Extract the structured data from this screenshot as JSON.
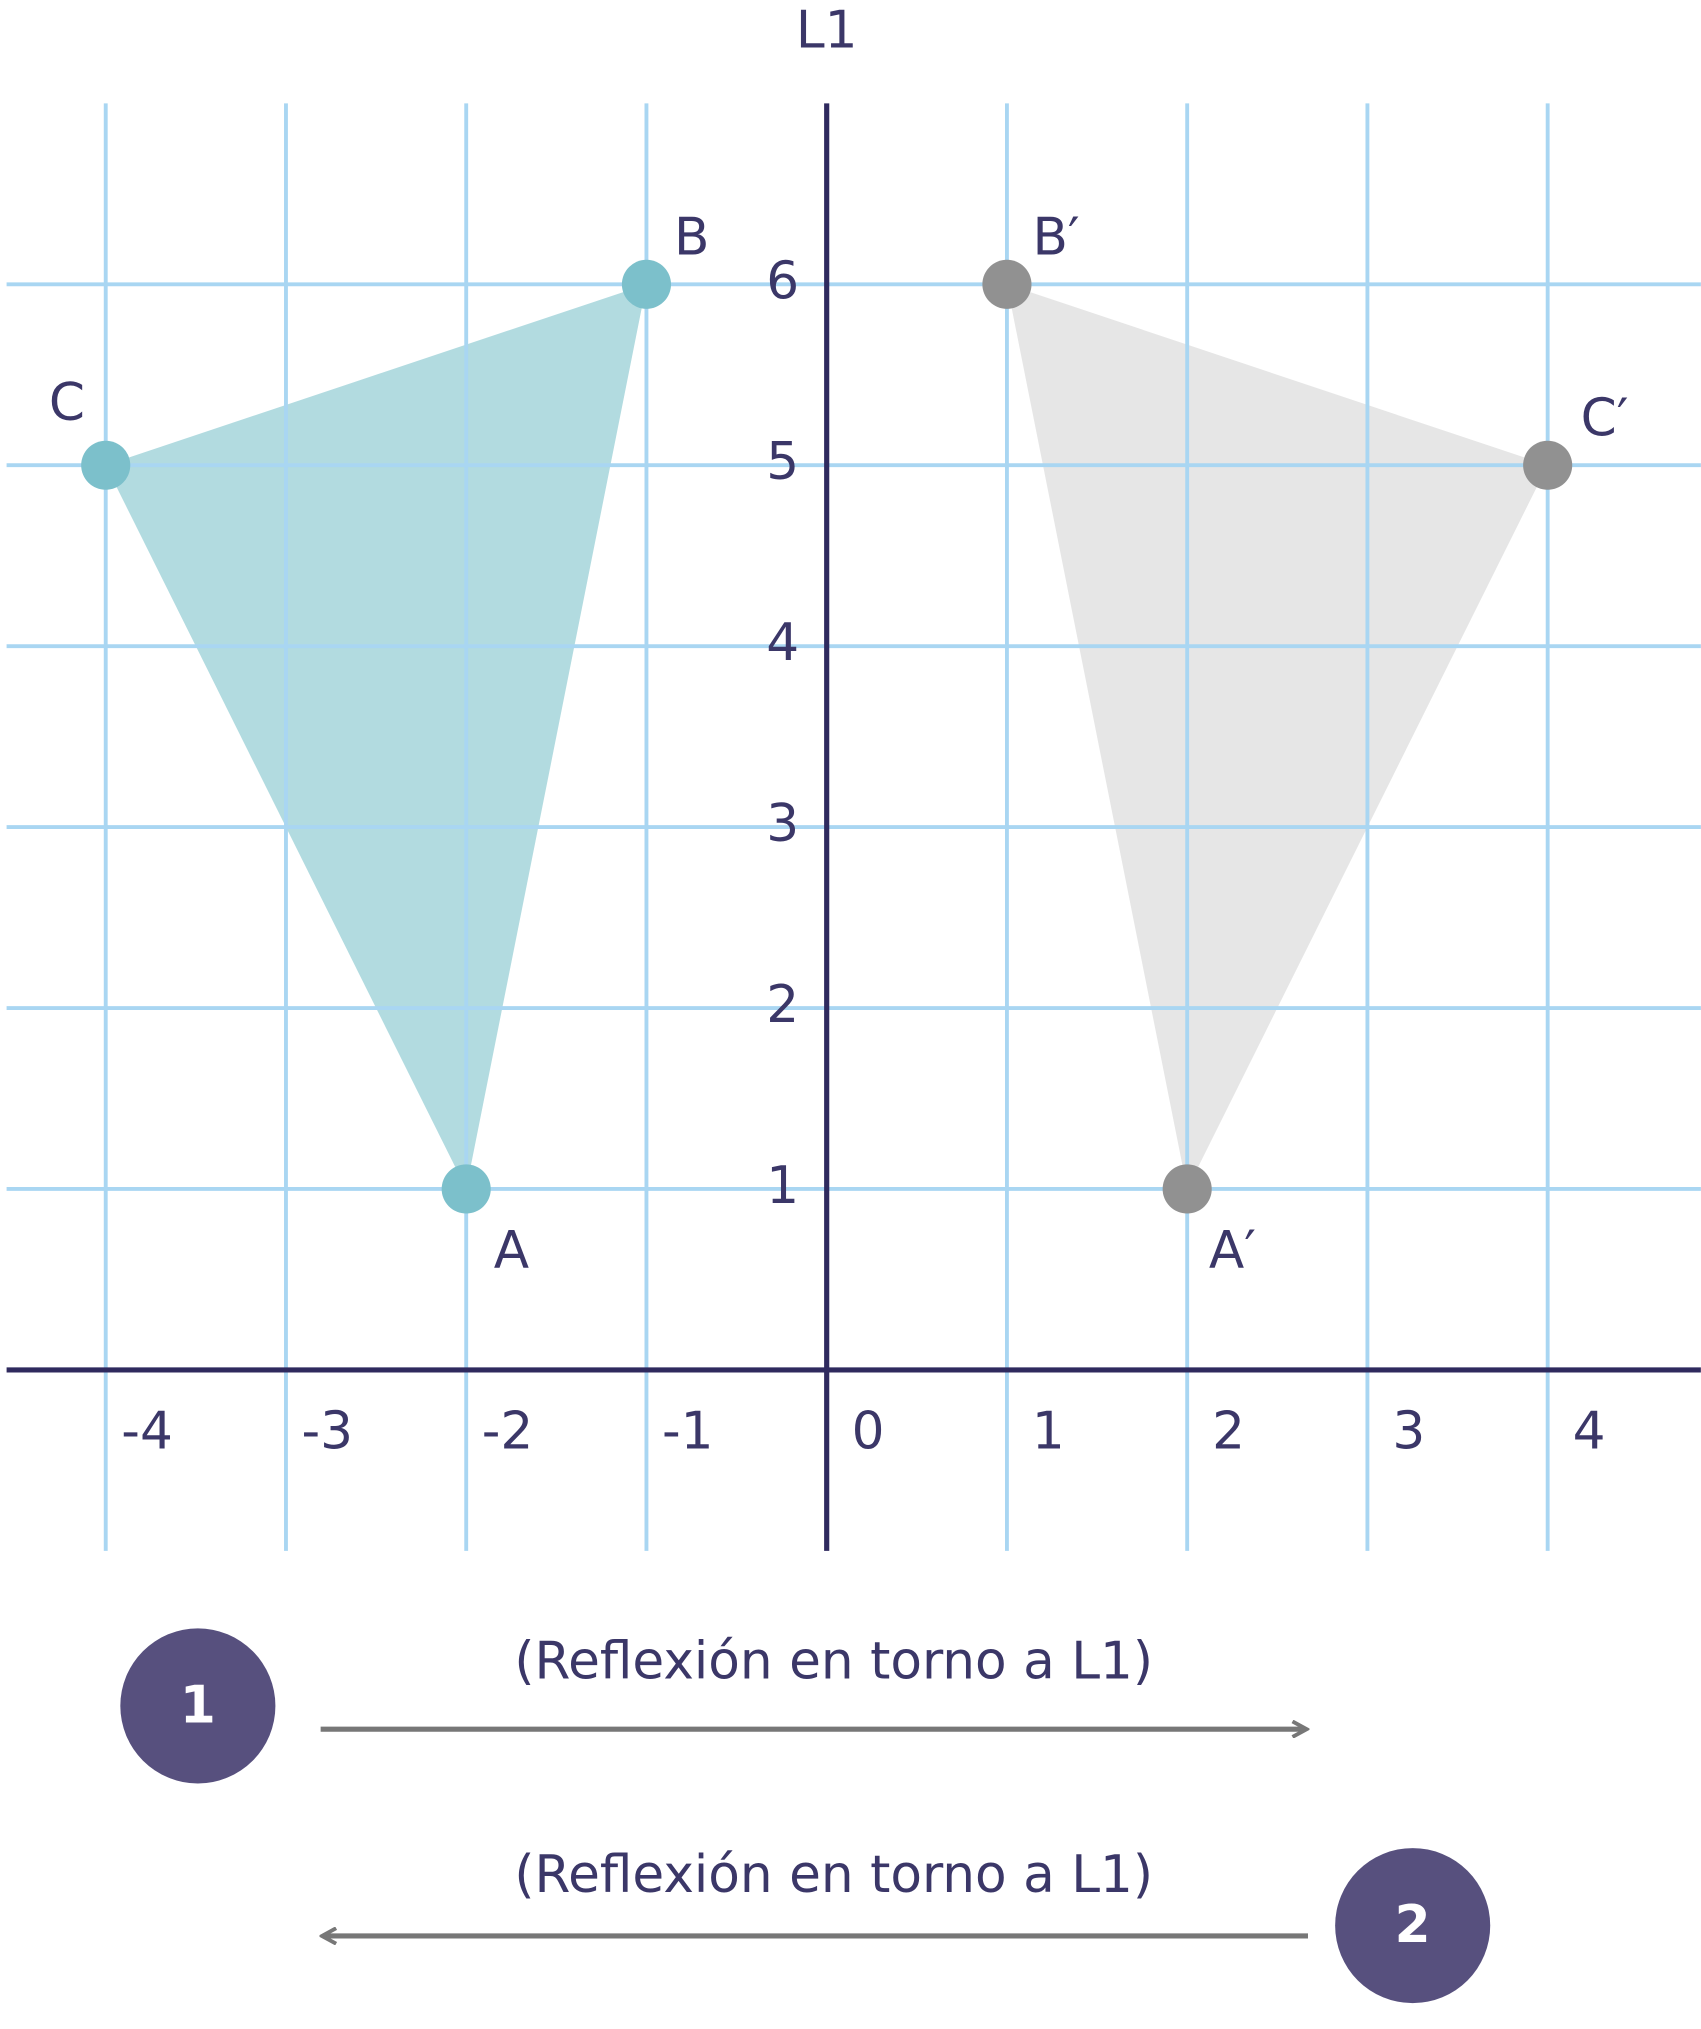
{
  "chart_data": {
    "type": "reflection",
    "axis_label": "L1",
    "xlim": [
      -4.55,
      4.85
    ],
    "ylim": [
      -1,
      7
    ],
    "xticks": [
      -4,
      -3,
      -2,
      -1,
      0,
      1,
      2,
      3,
      4
    ],
    "yticks": [
      1,
      2,
      3,
      4,
      5,
      6
    ],
    "grid": true,
    "shapes": [
      {
        "color": "#7cc0cb",
        "fill": "#b2dbe0",
        "points": [
          {
            "label": "A",
            "x": -2,
            "y": 1
          },
          {
            "label": "B",
            "x": -1,
            "y": 6
          },
          {
            "label": "C",
            "x": -4,
            "y": 5
          }
        ]
      },
      {
        "color": "#919191",
        "fill": "#e6e6e6",
        "points": [
          {
            "label": "A′",
            "x": 2,
            "y": 1
          },
          {
            "label": "B′",
            "x": 1,
            "y": 6
          },
          {
            "label": "C′",
            "x": 4,
            "y": 5
          }
        ]
      }
    ],
    "steps": [
      {
        "number": "1",
        "text": "(Reflexión en torno a L1)",
        "direction": "right"
      },
      {
        "number": "2",
        "text": "(Reflexión en torno a L1)",
        "direction": "left"
      }
    ]
  }
}
